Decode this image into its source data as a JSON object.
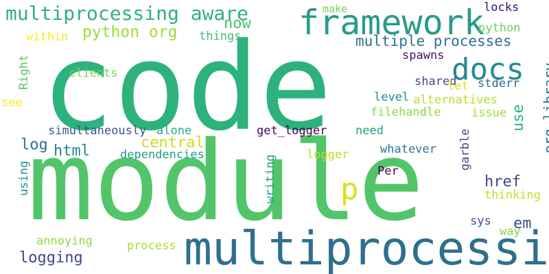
{
  "words": [
    {
      "text": "code",
      "color": "#2db27d",
      "rotate": 0
    },
    {
      "text": "module",
      "color": "#52c569",
      "rotate": 0
    },
    {
      "text": "multiprocessing",
      "color": "#2e6f8e",
      "rotate": 0
    },
    {
      "text": "framework",
      "color": "#2a9b8a",
      "rotate": 0
    },
    {
      "text": "multiprocessing aware",
      "color": "#2db27d",
      "rotate": 0
    },
    {
      "text": "docs",
      "color": "#238a8d",
      "rotate": 0
    },
    {
      "text": "p",
      "color": "#d8e219",
      "rotate": 0
    },
    {
      "text": "multiple processes",
      "color": "#2e6f8e",
      "rotate": 0
    },
    {
      "text": "python org",
      "color": "#a0da39",
      "rotate": 0
    },
    {
      "text": "org library",
      "color": "#2e6f8e",
      "rotate": 90
    },
    {
      "text": "central",
      "color": "#c8e020",
      "rotate": 0
    },
    {
      "text": "log",
      "color": "#2e6f8e",
      "rotate": 0
    },
    {
      "text": "html",
      "color": "#25848e",
      "rotate": 0
    },
    {
      "text": "logging",
      "color": "#3f4788",
      "rotate": 0
    },
    {
      "text": "now",
      "color": "#4ac16d",
      "rotate": 0
    },
    {
      "text": "href",
      "color": "#3f4788",
      "rotate": 0
    },
    {
      "text": "em",
      "color": "#3e4c8a",
      "rotate": 0
    },
    {
      "text": "use",
      "color": "#2db27d",
      "rotate": 90
    },
    {
      "text": "make",
      "color": "#73d056",
      "rotate": 0
    },
    {
      "text": "locks",
      "color": "#3b0f70",
      "rotate": 0
    },
    {
      "text": "python",
      "color": "#6ece58",
      "rotate": 0
    },
    {
      "text": "within",
      "color": "#fde725",
      "rotate": 0
    },
    {
      "text": "things",
      "color": "#40bd72",
      "rotate": 0
    },
    {
      "text": "spawns",
      "color": "#471164",
      "rotate": 0
    },
    {
      "text": "Right",
      "color": "#5cc863",
      "rotate": 90
    },
    {
      "text": "clients",
      "color": "#7ad151",
      "rotate": 0
    },
    {
      "text": "shared",
      "color": "#414487",
      "rotate": 0
    },
    {
      "text": "let",
      "color": "#e7e419",
      "rotate": 0
    },
    {
      "text": "stderr",
      "color": "#31688e",
      "rotate": 0
    },
    {
      "text": "level",
      "color": "#24878e",
      "rotate": 0
    },
    {
      "text": "alternatives",
      "color": "#b5de2b",
      "rotate": 0
    },
    {
      "text": "see",
      "color": "#fde725",
      "rotate": 0
    },
    {
      "text": "filehandle",
      "color": "#90d743",
      "rotate": 0
    },
    {
      "text": "issue",
      "color": "#9fda3a",
      "rotate": 0
    },
    {
      "text": "simultaneously",
      "color": "#3b528b",
      "rotate": 0
    },
    {
      "text": "alone",
      "color": "#22a884",
      "rotate": 0
    },
    {
      "text": "get_logger",
      "color": "#440154",
      "rotate": 0
    },
    {
      "text": "need",
      "color": "#1fa187",
      "rotate": 0
    },
    {
      "text": "garble",
      "color": "#3e4989",
      "rotate": 90
    },
    {
      "text": "dependencies",
      "color": "#1f9e89",
      "rotate": 0
    },
    {
      "text": "whatever",
      "color": "#2c728e",
      "rotate": 0
    },
    {
      "text": "logger",
      "color": "#bddf26",
      "rotate": 0
    },
    {
      "text": "using",
      "color": "#21918c",
      "rotate": 90
    },
    {
      "text": "writing",
      "color": "#1f9e89",
      "rotate": 90
    },
    {
      "text": "Per",
      "color": "#440154",
      "rotate": 0
    },
    {
      "text": "thinking",
      "color": "#c2df23",
      "rotate": 0
    },
    {
      "text": "sys",
      "color": "#3b528b",
      "rotate": 0
    },
    {
      "text": "way",
      "color": "#84d44b",
      "rotate": 0
    },
    {
      "text": "annoying",
      "color": "#8fd744",
      "rotate": 0
    },
    {
      "text": "process",
      "color": "#addc30",
      "rotate": 0
    }
  ]
}
